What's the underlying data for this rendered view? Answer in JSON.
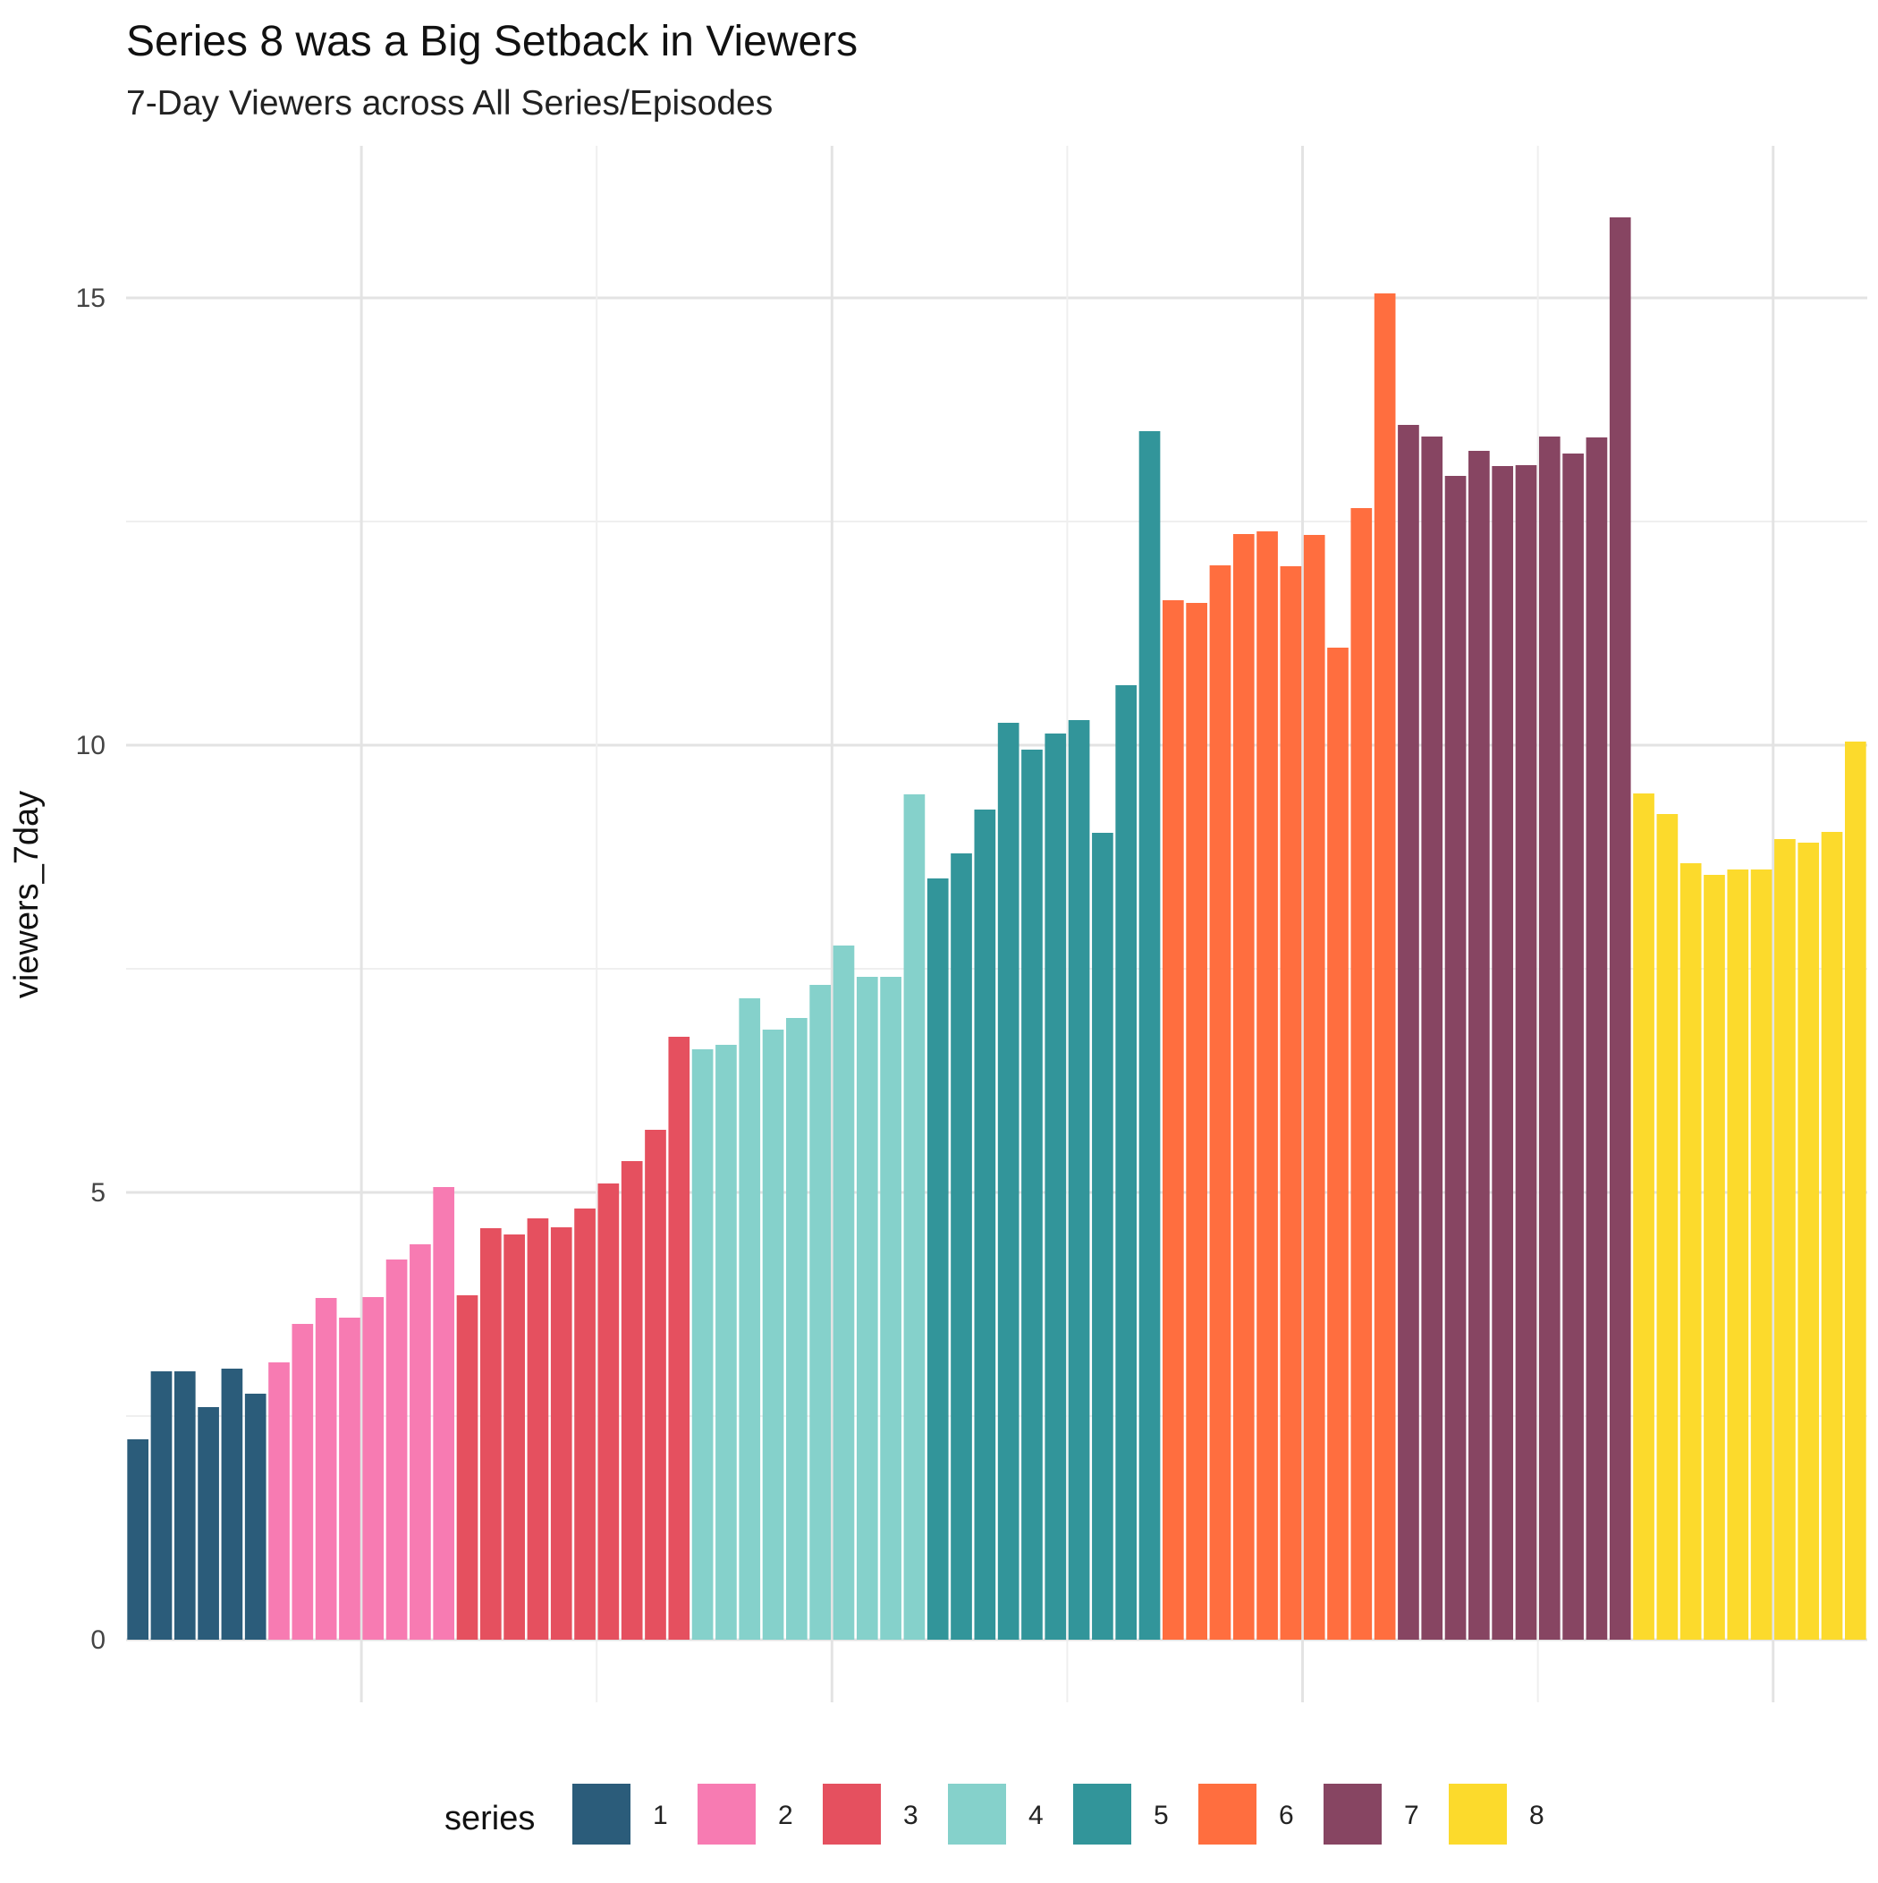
{
  "chart_data": {
    "type": "bar",
    "title": "Series 8 was a Big Setback in Viewers",
    "subtitle": "7-Day Viewers across All Series/Episodes",
    "xlabel": "",
    "ylabel": "viewers_7day",
    "ylim": [
      0,
      16.5
    ],
    "y_ticks": [
      0,
      5,
      10,
      15
    ],
    "grid": true,
    "legend": {
      "title": "series",
      "position": "bottom"
    },
    "colors": {
      "1": "#2B5C7A",
      "2": "#F77BB2",
      "3": "#E5505F",
      "4": "#85D1CB",
      "5": "#32959A",
      "6": "#FF6E3F",
      "7": "#874562",
      "8": "#FCDA2C"
    },
    "series": [
      {
        "name": "1",
        "values": [
          2.24,
          3.0,
          3.0,
          2.6,
          3.03,
          2.75
        ]
      },
      {
        "name": "2",
        "values": [
          3.1,
          3.53,
          3.82,
          3.6,
          3.83,
          4.25,
          4.42,
          5.06
        ]
      },
      {
        "name": "3",
        "values": [
          3.85,
          4.6,
          4.53,
          4.71,
          4.61,
          4.82,
          5.1,
          5.35,
          5.7,
          6.74
        ]
      },
      {
        "name": "4",
        "values": [
          6.6,
          6.65,
          7.17,
          6.82,
          6.95,
          7.32,
          7.76,
          7.41,
          7.41,
          9.45
        ]
      },
      {
        "name": "5",
        "values": [
          8.51,
          8.79,
          9.28,
          10.25,
          9.95,
          10.13,
          10.28,
          9.02,
          10.67,
          13.51
        ]
      },
      {
        "name": "6",
        "values": [
          11.62,
          11.59,
          12.01,
          12.36,
          12.39,
          12.0,
          12.35,
          11.09,
          12.65,
          15.05
        ]
      },
      {
        "name": "7",
        "values": [
          13.58,
          13.45,
          13.01,
          13.29,
          13.12,
          13.13,
          13.45,
          13.26,
          13.44,
          15.9
        ]
      },
      {
        "name": "8",
        "values": [
          9.46,
          9.23,
          8.68,
          8.55,
          8.61,
          8.61,
          8.95,
          8.91,
          9.03,
          10.04
        ]
      }
    ]
  }
}
